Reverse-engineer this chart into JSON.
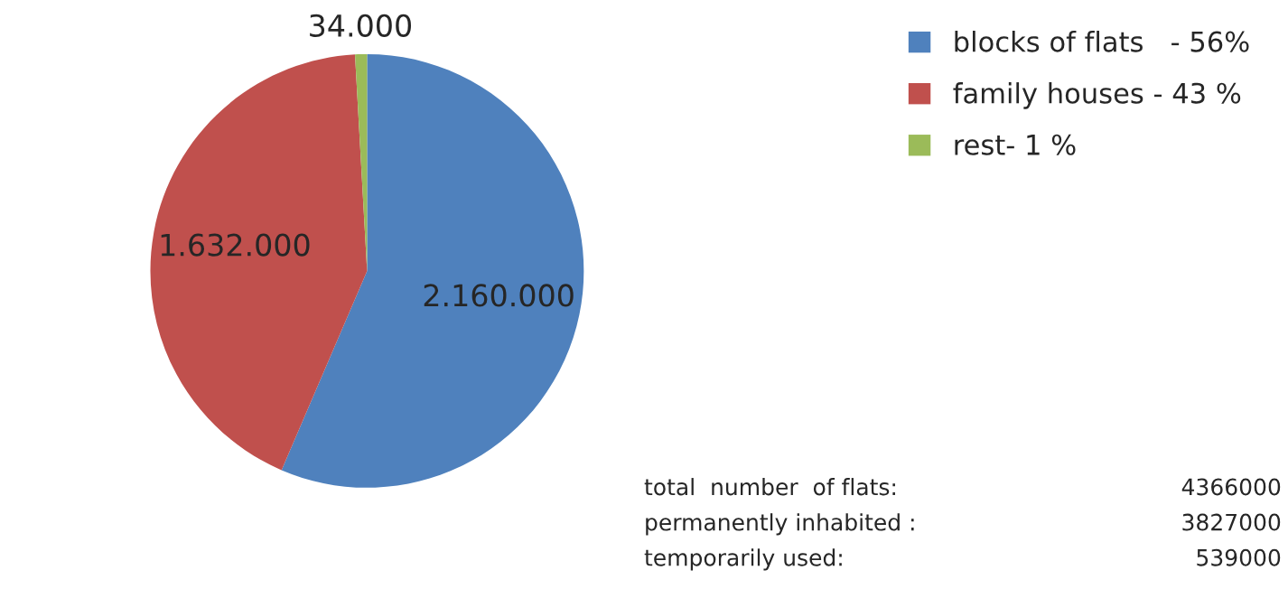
{
  "chart_data": {
    "type": "pie",
    "categories": [
      "blocks of flats   - 56%",
      "family houses - 43 %",
      "rest- 1 %"
    ],
    "values": [
      2160000,
      1632000,
      34000
    ],
    "colors": [
      "#4f81bd",
      "#c0504d",
      "#9bbb59"
    ],
    "value_labels": [
      "2.160.000",
      "1.632.000",
      "34.000"
    ],
    "legend": "top right",
    "annotations": [
      "total  number  of flats:",
      "4366000",
      "permanently inhabited :",
      "3827000",
      "temporarily used:",
      "539000"
    ]
  }
}
